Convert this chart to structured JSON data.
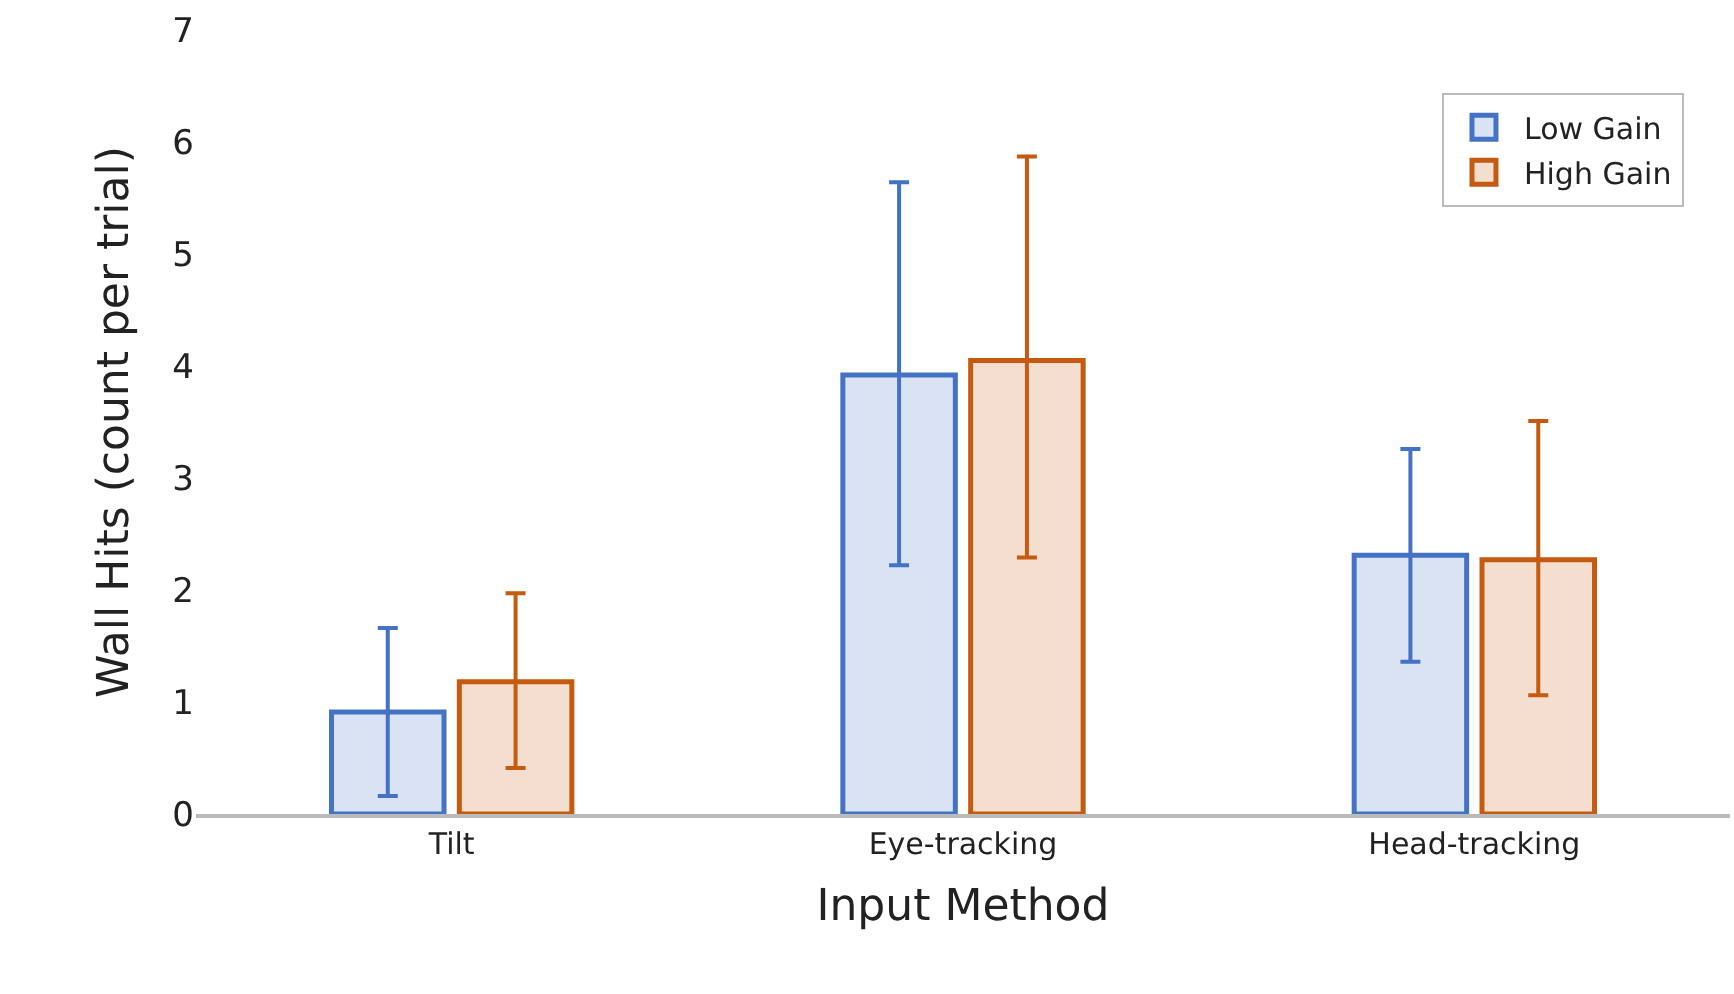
{
  "chart_data": {
    "type": "bar",
    "xlabel": "Input Method",
    "ylabel": "Wall Hits (count per trial)",
    "categories": [
      "Tilt",
      "Eye-tracking",
      "Head-tracking"
    ],
    "series": [
      {
        "name": "Low Gain",
        "color": "#4472c4",
        "values": [
          0.91,
          3.92,
          2.31
        ],
        "errors": [
          [
            0.16,
            1.66
          ],
          [
            2.22,
            5.64
          ],
          [
            1.36,
            3.26
          ]
        ]
      },
      {
        "name": "High Gain",
        "color": "#c55a11",
        "values": [
          1.18,
          4.05,
          2.27
        ],
        "errors": [
          [
            0.41,
            1.97
          ],
          [
            2.29,
            5.87
          ],
          [
            1.06,
            3.51
          ]
        ]
      }
    ],
    "ylim": [
      0,
      7
    ],
    "yticks": [
      0,
      1,
      2,
      3,
      4,
      5,
      6,
      7
    ],
    "legend": "top right"
  }
}
